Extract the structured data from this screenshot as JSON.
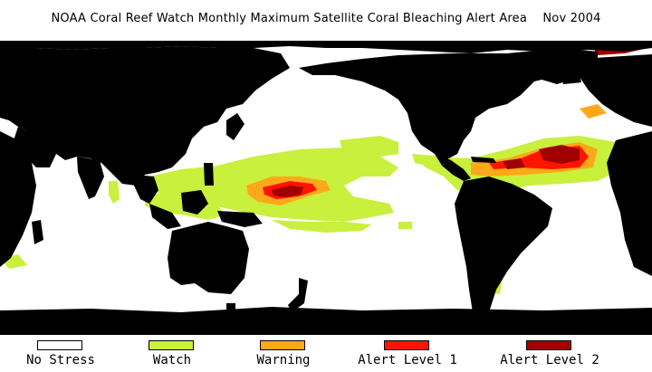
{
  "title": "NOAA Coral Reef Watch Monthly Maximum Satellite Coral Bleaching Alert Area    Nov 2004",
  "colors": {
    "ocean": "#ffffff",
    "land": "#000000",
    "no_stress": "#ffffff",
    "watch": "#c8f03c",
    "warning": "#ffa81a",
    "alert1": "#ff1400",
    "alert2": "#a00000"
  },
  "legend": [
    {
      "label": "No Stress",
      "color": "#ffffff"
    },
    {
      "label": "Watch",
      "color": "#c8f03c"
    },
    {
      "label": "Warning",
      "color": "#ffa81a"
    },
    {
      "label": "Alert Level 1",
      "color": "#ff1400"
    },
    {
      "label": "Alert Level 2",
      "color": "#a00000"
    }
  ]
}
